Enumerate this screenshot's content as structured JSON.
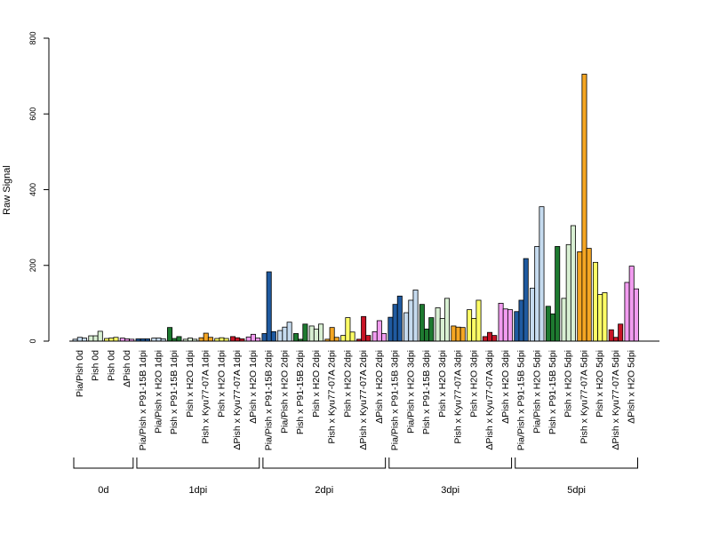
{
  "chart_data": {
    "type": "bar",
    "title": "",
    "xlabel": "",
    "ylabel": "Raw Signal",
    "ylim": [
      0,
      800
    ],
    "yticks": [
      0,
      200,
      400,
      600,
      800
    ],
    "grid": false,
    "categories": [
      {
        "label": "Pia/Pish 0d",
        "color": "#c6dbef",
        "values": [
          5,
          10,
          8
        ]
      },
      {
        "label": "Pish 0d",
        "color": "#d9f0d3",
        "values": [
          14,
          14,
          26
        ]
      },
      {
        "label": "Pish 0d",
        "color": "#ffff66",
        "values": [
          7,
          8,
          10
        ]
      },
      {
        "label": "ΔPish 0d",
        "color": "#f29cf0",
        "values": [
          8,
          6,
          5
        ]
      },
      {
        "label": "Pia/Pish x P91-15B 1dpi",
        "color": "#1f5aa0",
        "values": [
          6,
          6,
          6
        ]
      },
      {
        "label": "Pia/Pish x H2O 1dpi",
        "color": "#c6dbef",
        "values": [
          8,
          8,
          6
        ]
      },
      {
        "label": "Pish x P91-15B 1dpi",
        "color": "#1e7a30",
        "values": [
          36,
          7,
          12
        ]
      },
      {
        "label": "Pish x H2O 1dpi",
        "color": "#d9f0d3",
        "values": [
          5,
          8,
          5
        ]
      },
      {
        "label": "Pish x Kyu77-07A 1dpi",
        "color": "#f5a623",
        "values": [
          9,
          21,
          10
        ]
      },
      {
        "label": "Pish x H2O 1dpi",
        "color": "#ffff66",
        "values": [
          7,
          9,
          7
        ]
      },
      {
        "label": "ΔPish x Kyu77-07A 1dpi",
        "color": "#c81426",
        "values": [
          12,
          9,
          6
        ]
      },
      {
        "label": "ΔPish x H2O 1dpi",
        "color": "#f29cf0",
        "values": [
          11,
          18,
          8
        ]
      },
      {
        "label": "Pia/Pish x P91-15B 2dpi",
        "color": "#1f5aa0",
        "values": [
          20,
          183,
          25
        ]
      },
      {
        "label": "Pia/Pish x H2O 2dpi",
        "color": "#c6dbef",
        "values": [
          28,
          37,
          50
        ]
      },
      {
        "label": "Pish x P91-15B 2dpi",
        "color": "#1e7a30",
        "values": [
          20,
          5,
          45
        ]
      },
      {
        "label": "Pish x H2O 2dpi",
        "color": "#d9f0d3",
        "values": [
          40,
          32,
          45
        ]
      },
      {
        "label": "Pish x Kyu77-07A 2dpi",
        "color": "#f5a623",
        "values": [
          5,
          36,
          10
        ]
      },
      {
        "label": "Pish x H2O 2dpi",
        "color": "#ffff66",
        "values": [
          15,
          62,
          24
        ]
      },
      {
        "label": "ΔPish x Kyu77-07A 2dpi",
        "color": "#c81426",
        "values": [
          5,
          65,
          15
        ]
      },
      {
        "label": "ΔPish x H2O 2dpi",
        "color": "#f29cf0",
        "values": [
          25,
          54,
          20
        ]
      },
      {
        "label": "Pia/Pish x P91-15B 3dpi",
        "color": "#1f5aa0",
        "values": [
          63,
          97,
          119
        ]
      },
      {
        "label": "Pia/Pish x H2O 3dpi",
        "color": "#c6dbef",
        "values": [
          75,
          108,
          135
        ]
      },
      {
        "label": "Pish x P91-15B 3dpi",
        "color": "#1e7a30",
        "values": [
          97,
          32,
          62
        ]
      },
      {
        "label": "Pish x H2O 3dpi",
        "color": "#d9f0d3",
        "values": [
          88,
          60,
          113
        ]
      },
      {
        "label": "Pish x Kyu77-07A 3dpi",
        "color": "#f5a623",
        "values": [
          40,
          37,
          36
        ]
      },
      {
        "label": "Pish x H2O 3dpi",
        "color": "#ffff66",
        "values": [
          83,
          60,
          108
        ]
      },
      {
        "label": "ΔPish x Kyu77-07A 3dpi",
        "color": "#c81426",
        "values": [
          12,
          23,
          15
        ]
      },
      {
        "label": "ΔPish x H2O 3dpi",
        "color": "#f29cf0",
        "values": [
          100,
          85,
          83
        ]
      },
      {
        "label": "Pia/Pish x P91-15B 5dpi",
        "color": "#1f5aa0",
        "values": [
          78,
          108,
          218
        ]
      },
      {
        "label": "Pia/Pish x H2O 5dpi",
        "color": "#c6dbef",
        "values": [
          140,
          250,
          355
        ]
      },
      {
        "label": "Pish x P91-15B 5dpi",
        "color": "#1e7a30",
        "values": [
          92,
          72,
          250
        ]
      },
      {
        "label": "Pish x H2O 5dpi",
        "color": "#d9f0d3",
        "values": [
          113,
          255,
          305
        ]
      },
      {
        "label": "Pish x Kyu77-07A 5dpi",
        "color": "#f5a623",
        "values": [
          236,
          705,
          245
        ]
      },
      {
        "label": "Pish x H2O 5dpi",
        "color": "#ffff66",
        "values": [
          208,
          123,
          128
        ]
      },
      {
        "label": "ΔPish x Kyu77-07A 5dpi",
        "color": "#c81426",
        "values": [
          30,
          10,
          45
        ]
      },
      {
        "label": "ΔPish x H2O 5dpi",
        "color": "#f29cf0",
        "values": [
          155,
          198,
          138
        ]
      }
    ],
    "groups": [
      {
        "label": "0d",
        "start": 0,
        "end": 3
      },
      {
        "label": "1dpi",
        "start": 4,
        "end": 11
      },
      {
        "label": "2dpi",
        "start": 12,
        "end": 19
      },
      {
        "label": "3dpi",
        "start": 20,
        "end": 27
      },
      {
        "label": "5dpi",
        "start": 28,
        "end": 35
      }
    ]
  }
}
